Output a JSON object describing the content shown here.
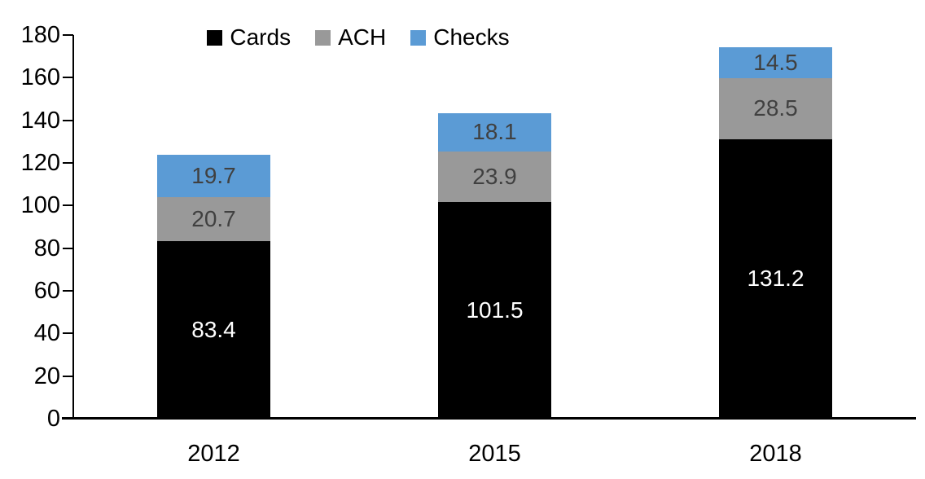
{
  "chart_data": {
    "type": "bar",
    "stacked": true,
    "title": "",
    "xlabel": "",
    "ylabel": "",
    "categories": [
      "2012",
      "2015",
      "2018"
    ],
    "series": [
      {
        "name": "Cards",
        "color": "#000000",
        "label_color": "#ffffff",
        "values": [
          83.4,
          101.5,
          131.2
        ]
      },
      {
        "name": "ACH",
        "color": "#999999",
        "label_color": "#404040",
        "values": [
          20.7,
          23.9,
          28.5
        ]
      },
      {
        "name": "Checks",
        "color": "#5B9BD5",
        "label_color": "#404040",
        "values": [
          19.7,
          18.1,
          14.5
        ]
      }
    ],
    "ylim": [
      0,
      180
    ],
    "yticks": [
      0,
      20,
      40,
      60,
      80,
      100,
      120,
      140,
      160,
      180
    ],
    "grid": false,
    "legend_position": "top-center",
    "axis_color": "#000000"
  }
}
